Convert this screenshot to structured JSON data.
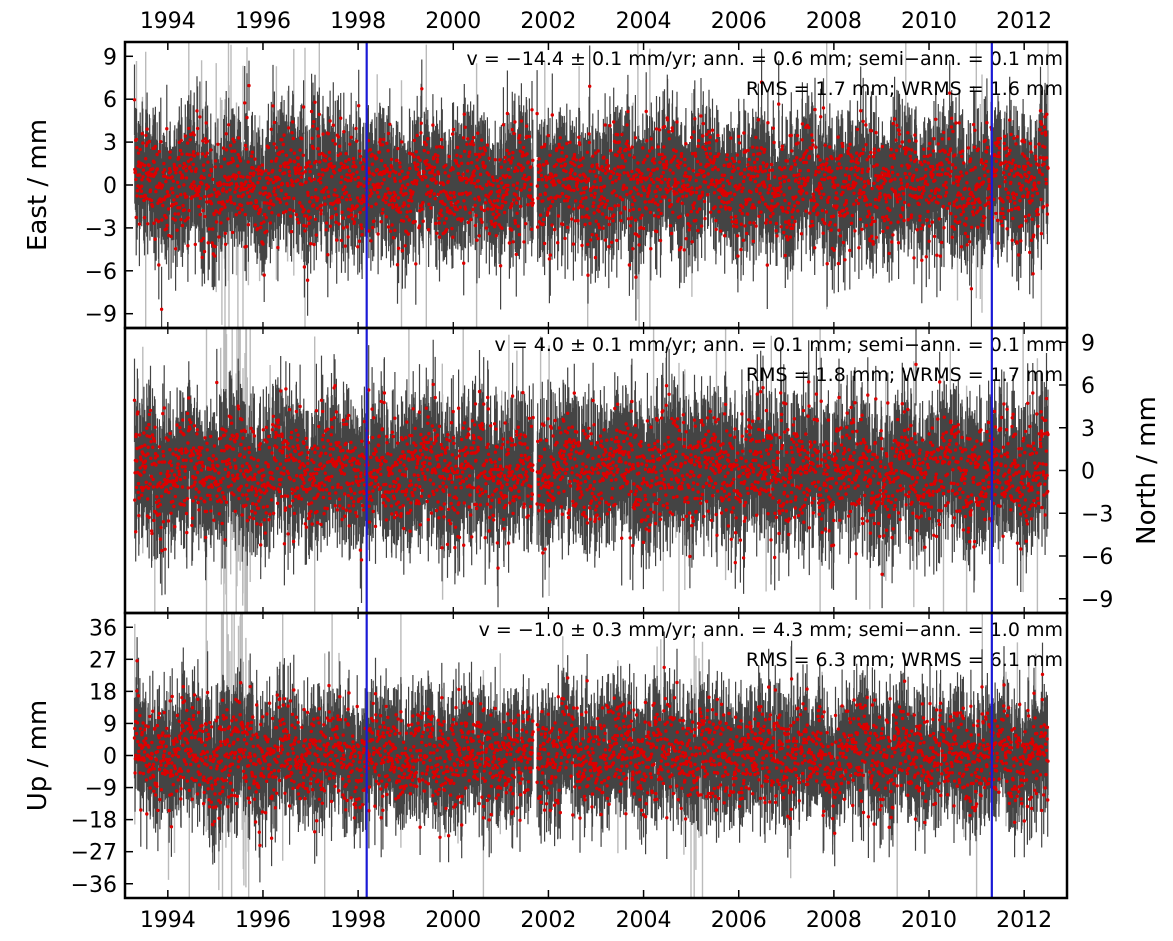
{
  "chart_data": {
    "type": "scatter",
    "x_ticks": [
      1994,
      1996,
      1998,
      2000,
      2002,
      2004,
      2006,
      2008,
      2010,
      2012
    ],
    "x_range": [
      1993.1,
      2012.9
    ],
    "data_x_range": [
      1993.3,
      2012.5
    ],
    "event_lines": [
      1998.18,
      2011.32
    ],
    "colors": {
      "errorbar": "#444444",
      "point": "#dd0000",
      "outlier": "#bbbbbb",
      "event_line": "#1a1ad6",
      "frame": "#000000"
    },
    "panels": [
      {
        "name": "east",
        "ylabel": "East / mm",
        "ylabel_side": "left",
        "ylim": [
          -10,
          10
        ],
        "yticks": [
          -9,
          -6,
          -3,
          0,
          3,
          6,
          9
        ],
        "amplitude": 2.0,
        "errorbar": 2.4,
        "annotation_line1": "v = −14.4 ± 0.1 mm/yr; ann. = 0.6 mm; semi−ann. = 0.1 mm",
        "annotation_line2": "RMS = 1.7 mm; WRMS = 1.6 mm"
      },
      {
        "name": "north",
        "ylabel": "North / mm",
        "ylabel_side": "right",
        "ylim": [
          -10,
          10
        ],
        "yticks": [
          -9,
          -6,
          -3,
          0,
          3,
          6,
          9
        ],
        "amplitude": 2.0,
        "errorbar": 2.6,
        "annotation_line1": "v = 4.0 ± 0.1 mm/yr; ann. = 0.1 mm; semi−ann. = 0.1 mm",
        "annotation_line2": "RMS = 1.8 mm; WRMS = 1.7 mm"
      },
      {
        "name": "up",
        "ylabel": "Up / mm",
        "ylabel_side": "left",
        "ylim": [
          -40,
          40
        ],
        "yticks": [
          -36,
          -27,
          -18,
          -9,
          0,
          9,
          18,
          27,
          36
        ],
        "amplitude": 7.0,
        "errorbar": 9.0,
        "annotation_line1": "v = −1.0 ± 0.3 mm/yr; ann. = 4.3 mm; semi−ann. = 1.0 mm",
        "annotation_line2": "RMS = 6.3 mm; WRMS = 6.1 mm"
      }
    ]
  }
}
